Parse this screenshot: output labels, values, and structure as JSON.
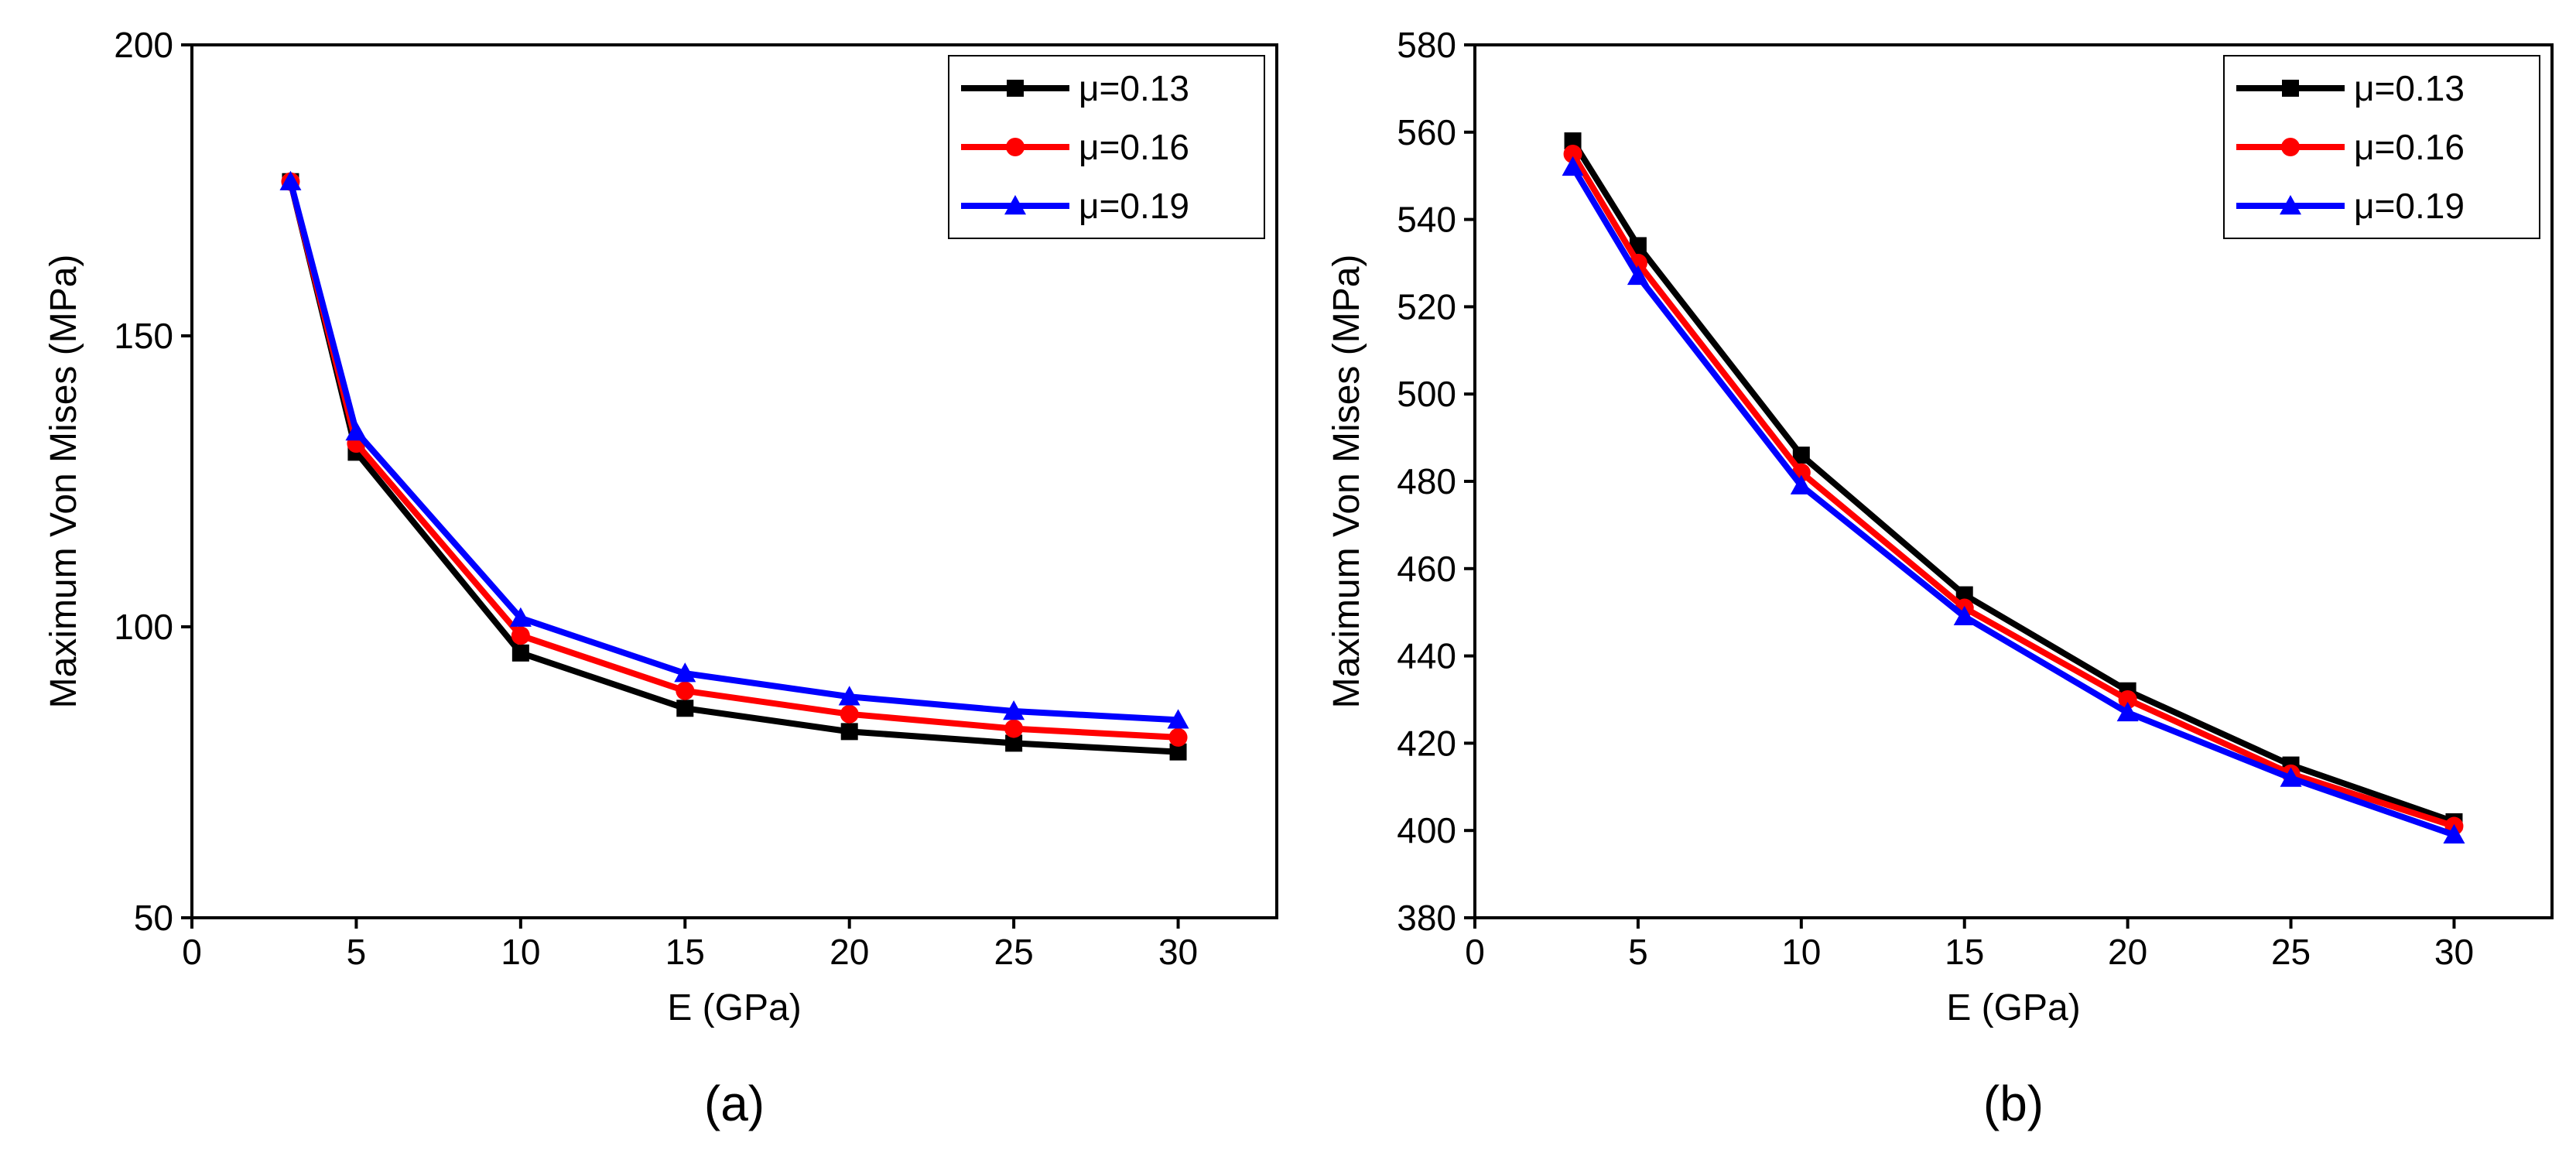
{
  "charts": [
    {
      "panel_label": "(a)",
      "xlabel": "E (GPa)",
      "ylabel": "Maximum Von Mises (MPa)"
    },
    {
      "panel_label": "(b)",
      "xlabel": "E (GPa)",
      "ylabel": "Maximum Von Mises (MPa)"
    }
  ],
  "chart_data": [
    {
      "type": "line",
      "title": "",
      "panel": "(a)",
      "xlabel": "E (GPa)",
      "ylabel": "Maximum Von Mises (MPa)",
      "xlim": [
        0,
        33
      ],
      "ylim": [
        50,
        200
      ],
      "xticks": [
        0,
        5,
        10,
        15,
        20,
        25,
        30
      ],
      "yticks": [
        50,
        100,
        150,
        200
      ],
      "grid": false,
      "legend_position": "top-right",
      "x": [
        3,
        5,
        10,
        15,
        20,
        25,
        30
      ],
      "series": [
        {
          "name": "μ=0.13",
          "color": "#000000",
          "marker": "square",
          "values": [
            176.5,
            130,
            95.5,
            86,
            82,
            80,
            78.5
          ]
        },
        {
          "name": "μ=0.16",
          "color": "#ff0000",
          "marker": "circle",
          "values": [
            176.5,
            131.5,
            98.5,
            89,
            85,
            82.5,
            81
          ]
        },
        {
          "name": "μ=0.19",
          "color": "#0000ff",
          "marker": "triangle",
          "values": [
            176.5,
            133.5,
            101.5,
            92,
            88,
            85.5,
            84
          ]
        }
      ]
    },
    {
      "type": "line",
      "title": "",
      "panel": "(b)",
      "xlabel": "E (GPa)",
      "ylabel": "Maximum Von Mises (MPa)",
      "xlim": [
        0,
        33
      ],
      "ylim": [
        380,
        580
      ],
      "xticks": [
        0,
        5,
        10,
        15,
        20,
        25,
        30
      ],
      "yticks": [
        380,
        400,
        420,
        440,
        460,
        480,
        500,
        520,
        540,
        560,
        580
      ],
      "grid": false,
      "legend_position": "top-right",
      "x": [
        3,
        5,
        10,
        15,
        20,
        25,
        30
      ],
      "series": [
        {
          "name": "μ=0.13",
          "color": "#000000",
          "marker": "square",
          "values": [
            558,
            534,
            486,
            454,
            432,
            415,
            402
          ]
        },
        {
          "name": "μ=0.16",
          "color": "#ff0000",
          "marker": "circle",
          "values": [
            555,
            530,
            482,
            451,
            430,
            413,
            401
          ]
        },
        {
          "name": "μ=0.19",
          "color": "#0000ff",
          "marker": "triangle",
          "values": [
            552,
            527,
            479,
            449,
            427,
            412,
            399
          ]
        }
      ]
    }
  ]
}
